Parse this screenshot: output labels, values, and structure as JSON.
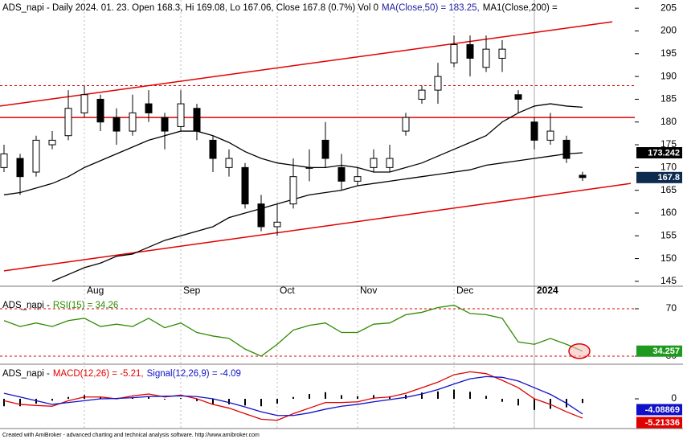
{
  "chart_data": [
    {
      "type": "candlestick",
      "header": [
        {
          "text": "ADS_napi - Daily 2024. 01. 23. Open 168.3, Hi 169.08, Lo 167.06, Close 167.8 (0.7%) Vol 0",
          "color": "#000000"
        },
        {
          "text": "MA(Close,50) = 183.25,",
          "color": "#1a1aa0"
        },
        {
          "text": "MA1(Close,200) =",
          "color": "#000000"
        }
      ],
      "categories": [
        null,
        null,
        null,
        null,
        null,
        "Aug",
        null,
        null,
        null,
        null,
        null,
        "Sep",
        null,
        null,
        null,
        null,
        null,
        "Oct",
        null,
        null,
        null,
        null,
        "Nov",
        null,
        null,
        null,
        null,
        null,
        "Dec",
        null,
        null,
        null,
        null,
        "2024",
        null,
        null,
        null
      ],
      "open": [
        170,
        172,
        169,
        175,
        177,
        182,
        185,
        181,
        178,
        184,
        181,
        179,
        183,
        176,
        170,
        170,
        162,
        157,
        162,
        170,
        176,
        170,
        167,
        170,
        170,
        178,
        185,
        187,
        193,
        197,
        192,
        194,
        186,
        180,
        176,
        176,
        168.3
      ],
      "high": [
        175,
        173,
        177,
        178,
        187,
        188,
        186,
        183,
        186,
        187,
        182,
        187,
        184,
        177,
        174,
        171,
        164,
        162,
        172,
        174,
        180,
        173,
        170,
        174,
        175,
        182,
        188,
        193,
        199,
        199,
        199,
        198,
        187,
        181,
        182,
        177,
        169.08
      ],
      "low": [
        169,
        164,
        168,
        174,
        176,
        181,
        178,
        175,
        177,
        180,
        174,
        178,
        176,
        169,
        168,
        161,
        156,
        155,
        161,
        167,
        170,
        165,
        166,
        169,
        169,
        177,
        184,
        184,
        192,
        190,
        191,
        191,
        182,
        174,
        175,
        171,
        167.06
      ],
      "close": [
        173,
        168,
        176,
        176,
        183,
        186,
        180,
        178,
        182,
        182,
        178,
        184,
        178,
        172,
        172,
        162,
        157,
        158,
        168,
        170,
        172,
        167,
        168,
        172,
        172,
        181,
        187,
        190,
        197,
        194,
        196,
        196,
        185,
        176,
        178,
        172,
        167.8
      ],
      "up_color": "#ffffff",
      "down_color": "#000000",
      "close_tag_color": "#0d2b4e",
      "overlays": [
        {
          "color": "#000000",
          "values": [
            164,
            164.5,
            165.5,
            166.5,
            168,
            170,
            171.5,
            173,
            174.5,
            176,
            177,
            178,
            178,
            177,
            175.5,
            173.5,
            172,
            171,
            170.5,
            170,
            170,
            170.5,
            170,
            169,
            169,
            170,
            171,
            172.5,
            174,
            175.5,
            177,
            180,
            182,
            183.5,
            184,
            183.5,
            183.25
          ]
        },
        {
          "color": "#000000",
          "tag_color": "#000000",
          "values": [
            null,
            null,
            null,
            145,
            146.5,
            148,
            149,
            150.5,
            151,
            152.5,
            154,
            155,
            156,
            157,
            159,
            160,
            161,
            162,
            163,
            164,
            164.5,
            165,
            166,
            166.5,
            167,
            167.5,
            168,
            168.5,
            169,
            169.5,
            170.5,
            171,
            171.5,
            172,
            172.5,
            173,
            173.242
          ]
        }
      ],
      "trend_lines": [
        {
          "color": "#e00000",
          "x": [
            -0.25,
            37.85
          ],
          "values": [
            183.5,
            202
          ]
        },
        {
          "color": "#e00000",
          "x": [
            0,
            39
          ],
          "values": [
            147.3,
            166.5
          ]
        }
      ],
      "hlines": [
        {
          "value": 181,
          "color": "#e00000",
          "dashed": false
        },
        {
          "value": 188,
          "color": "#e00000",
          "dashed": true
        }
      ],
      "ylim": [
        144.1,
        206.8
      ],
      "yticks": [
        145,
        150,
        155,
        160,
        165,
        170,
        175,
        180,
        185,
        190,
        195,
        200,
        205
      ]
    },
    {
      "type": "line",
      "header": [
        {
          "text": "ADS_napi -",
          "color": "#000000"
        },
        {
          "text": "RSI(15) = 34.26",
          "color": "#2e8b00"
        }
      ],
      "series": [
        {
          "color": "#2e8b00",
          "tag_color": "#1e9a1e",
          "values": [
            60,
            55,
            58,
            55,
            60,
            62,
            55,
            57,
            55,
            62,
            54,
            58,
            50,
            47,
            45,
            36,
            30,
            40,
            52,
            56,
            58,
            50,
            50,
            57,
            58,
            65,
            67,
            71,
            73,
            66,
            65,
            62,
            42,
            40,
            45,
            40,
            34.257
          ]
        }
      ],
      "hlines": [
        {
          "value": 70,
          "color": "#e00000",
          "dashed": true
        },
        {
          "value": 30,
          "color": "#e00000",
          "dashed": true
        }
      ],
      "highlight_last": {
        "color": "#e00000",
        "fill": "#f7c0c0"
      },
      "ylim": [
        23.9,
        79.5
      ],
      "yticks": [
        30,
        70
      ]
    },
    {
      "type": "line",
      "header": [
        {
          "text": "ADS_napi -",
          "color": "#000000"
        },
        {
          "text": "MACD(12,26) = -5.21,",
          "color": "#e00000"
        },
        {
          "text": "Signal(12,26,9) = -4.09",
          "color": "#1010c8"
        }
      ],
      "histogram": {
        "color": "#000000",
        "values": [
          -2,
          -2,
          -1.3,
          -0.5,
          0.5,
          1,
          0.5,
          -0.1,
          0.5,
          0.7,
          -0.2,
          0.2,
          -0.6,
          -1.5,
          -1.5,
          -1.8,
          -2,
          -1.3,
          0.5,
          1.3,
          1.8,
          1,
          0.7,
          1,
          0.7,
          1.1,
          1.7,
          2,
          2.5,
          1.9,
          0.8,
          -0.8,
          -1.8,
          -3,
          -2.7,
          -2.3,
          -1.12467
        ]
      },
      "series": [
        {
          "color": "#e00000",
          "tag_color": "#e00000",
          "values": [
            -0.5,
            -1.5,
            -1.8,
            -2,
            -0.5,
            0.5,
            0.5,
            0,
            0.8,
            1.3,
            0.5,
            1,
            0,
            -1.5,
            -2.5,
            -4,
            -5.5,
            -5.8,
            -4,
            -2.5,
            -1,
            -1,
            -0.8,
            0.2,
            0.5,
            1.5,
            3,
            4.5,
            6.5,
            7.3,
            6.8,
            5,
            3,
            0,
            -1.5,
            -3.5,
            -5.21336
          ]
        },
        {
          "color": "#1010c8",
          "tag_color": "#1010c8",
          "values": [
            1.5,
            0.5,
            -0.5,
            -1.5,
            -1,
            -0.5,
            0,
            0.1,
            0.3,
            0.6,
            0.7,
            0.8,
            0.6,
            0,
            -1,
            -2.2,
            -3.5,
            -4.5,
            -4.5,
            -3.8,
            -2.8,
            -2,
            -1.5,
            -0.8,
            -0.2,
            0.4,
            1.3,
            2.5,
            4,
            5.4,
            6,
            5.8,
            4.8,
            3,
            1.2,
            -1.2,
            -4.08869
          ]
        }
      ],
      "ylim": [
        -7.8,
        8.9
      ],
      "yticks": [
        0
      ]
    }
  ],
  "footer": "Created with AmiBroker - advanced charting and technical analysis software. http://www.amibroker.com"
}
